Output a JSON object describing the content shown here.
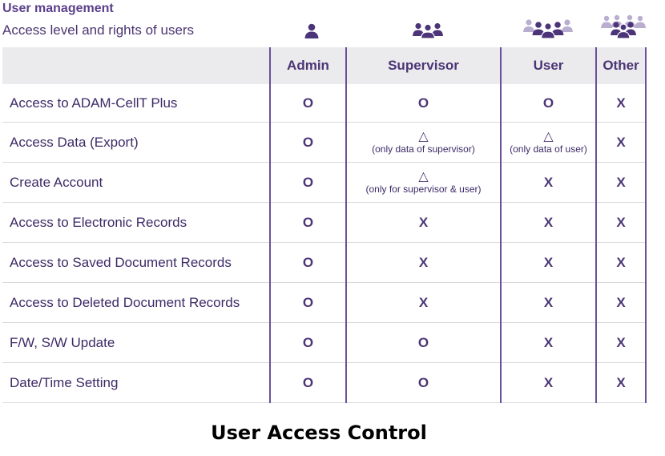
{
  "header": {
    "title": "User management",
    "subtitle": "Access level and rights of users"
  },
  "icons": {
    "admin": "single-person-icon",
    "supervisor": "group-of-three-icon",
    "user": "group-of-five-icon",
    "other": "crowd-icon"
  },
  "columns": [
    "Admin",
    "Supervisor",
    "User",
    "Other"
  ],
  "rows": [
    {
      "label": "Access to ADAM-CellT Plus",
      "cells": [
        {
          "mark": "O",
          "note": ""
        },
        {
          "mark": "O",
          "note": ""
        },
        {
          "mark": "O",
          "note": ""
        },
        {
          "mark": "X",
          "note": ""
        }
      ]
    },
    {
      "label": "Access Data (Export)",
      "cells": [
        {
          "mark": "O",
          "note": ""
        },
        {
          "mark": "△",
          "note": "(only data of supervisor)"
        },
        {
          "mark": "△",
          "note": "(only data of user)"
        },
        {
          "mark": "X",
          "note": ""
        }
      ]
    },
    {
      "label": "Create Account",
      "cells": [
        {
          "mark": "O",
          "note": ""
        },
        {
          "mark": "△",
          "note": "(only for supervisor & user)"
        },
        {
          "mark": "X",
          "note": ""
        },
        {
          "mark": "X",
          "note": ""
        }
      ]
    },
    {
      "label": "Access to Electronic Records",
      "cells": [
        {
          "mark": "O",
          "note": ""
        },
        {
          "mark": "X",
          "note": ""
        },
        {
          "mark": "X",
          "note": ""
        },
        {
          "mark": "X",
          "note": ""
        }
      ]
    },
    {
      "label": "Access to Saved Document Records",
      "cells": [
        {
          "mark": "O",
          "note": ""
        },
        {
          "mark": "X",
          "note": ""
        },
        {
          "mark": "X",
          "note": ""
        },
        {
          "mark": "X",
          "note": ""
        }
      ]
    },
    {
      "label": "Access to Deleted Document Records",
      "cells": [
        {
          "mark": "O",
          "note": ""
        },
        {
          "mark": "X",
          "note": ""
        },
        {
          "mark": "X",
          "note": ""
        },
        {
          "mark": "X",
          "note": ""
        }
      ]
    },
    {
      "label": "F/W, S/W Update",
      "cells": [
        {
          "mark": "O",
          "note": ""
        },
        {
          "mark": "O",
          "note": ""
        },
        {
          "mark": "X",
          "note": ""
        },
        {
          "mark": "X",
          "note": ""
        }
      ]
    },
    {
      "label": "Date/Time Setting",
      "cells": [
        {
          "mark": "O",
          "note": ""
        },
        {
          "mark": "O",
          "note": ""
        },
        {
          "mark": "X",
          "note": ""
        },
        {
          "mark": "X",
          "note": ""
        }
      ]
    }
  ],
  "caption": "User Access Control",
  "colors": {
    "accent": "#5a3f8a",
    "header_bg": "#ebebed",
    "icon_dark": "#4b3478",
    "icon_light": "#b9aed0"
  }
}
